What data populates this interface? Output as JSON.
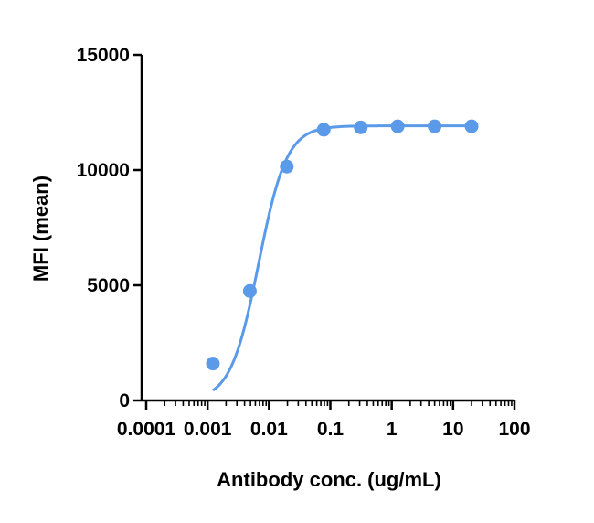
{
  "chart_data": {
    "type": "scatter",
    "x_scale": "log",
    "xlabel": "Antibody conc. (ug/mL)",
    "ylabel": "MFI (mean)",
    "xlim": [
      0.0001,
      100
    ],
    "ylim": [
      0,
      15000
    ],
    "x_ticks": [
      {
        "value": 0.0001,
        "label": "0.0001"
      },
      {
        "value": 0.001,
        "label": "0.001"
      },
      {
        "value": 0.01,
        "label": "0.01"
      },
      {
        "value": 0.1,
        "label": "0.1"
      },
      {
        "value": 1,
        "label": "1"
      },
      {
        "value": 10,
        "label": "10"
      },
      {
        "value": 100,
        "label": "100"
      }
    ],
    "y_ticks": [
      {
        "value": 0,
        "label": "0"
      },
      {
        "value": 5000,
        "label": "5000"
      },
      {
        "value": 10000,
        "label": "10000"
      },
      {
        "value": 15000,
        "label": "15000"
      }
    ],
    "grid": false,
    "legend": "none",
    "series": [
      {
        "color": "#5b9ae8",
        "points": [
          {
            "x": 0.00122,
            "y": 1600
          },
          {
            "x": 0.00488,
            "y": 4750
          },
          {
            "x": 0.0195,
            "y": 10150
          },
          {
            "x": 0.078,
            "y": 11750
          },
          {
            "x": 0.3125,
            "y": 11850
          },
          {
            "x": 1.25,
            "y": 11900
          },
          {
            "x": 5,
            "y": 11900
          },
          {
            "x": 20,
            "y": 11900
          }
        ],
        "fit": "sigmoidal",
        "fit_params": {
          "bottom": 0,
          "top": 11920,
          "ec50": 0.0068,
          "hill": 1.9
        }
      }
    ]
  }
}
